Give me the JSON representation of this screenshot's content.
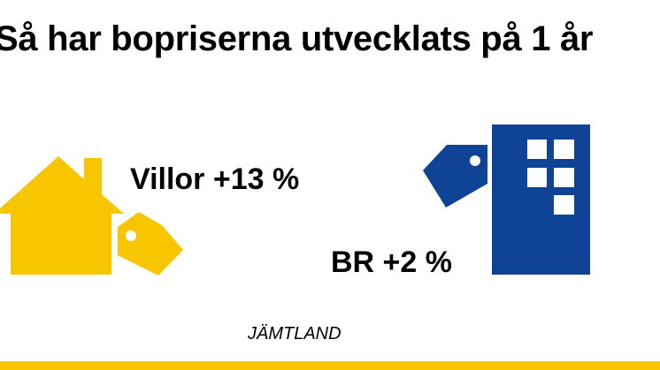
{
  "headline": "Så har bopriserna utvecklats på 1 år",
  "stats": {
    "villor": "Villor +13 %",
    "br": "BR +2 %"
  },
  "region": "JÄMTLAND",
  "icons": {
    "house": "house-icon",
    "house_tag": "price-tag-icon",
    "building": "apartment-building-icon",
    "building_tag": "price-tag-icon"
  },
  "colors": {
    "yellow": "#f7c600",
    "blue": "#0e4396"
  }
}
